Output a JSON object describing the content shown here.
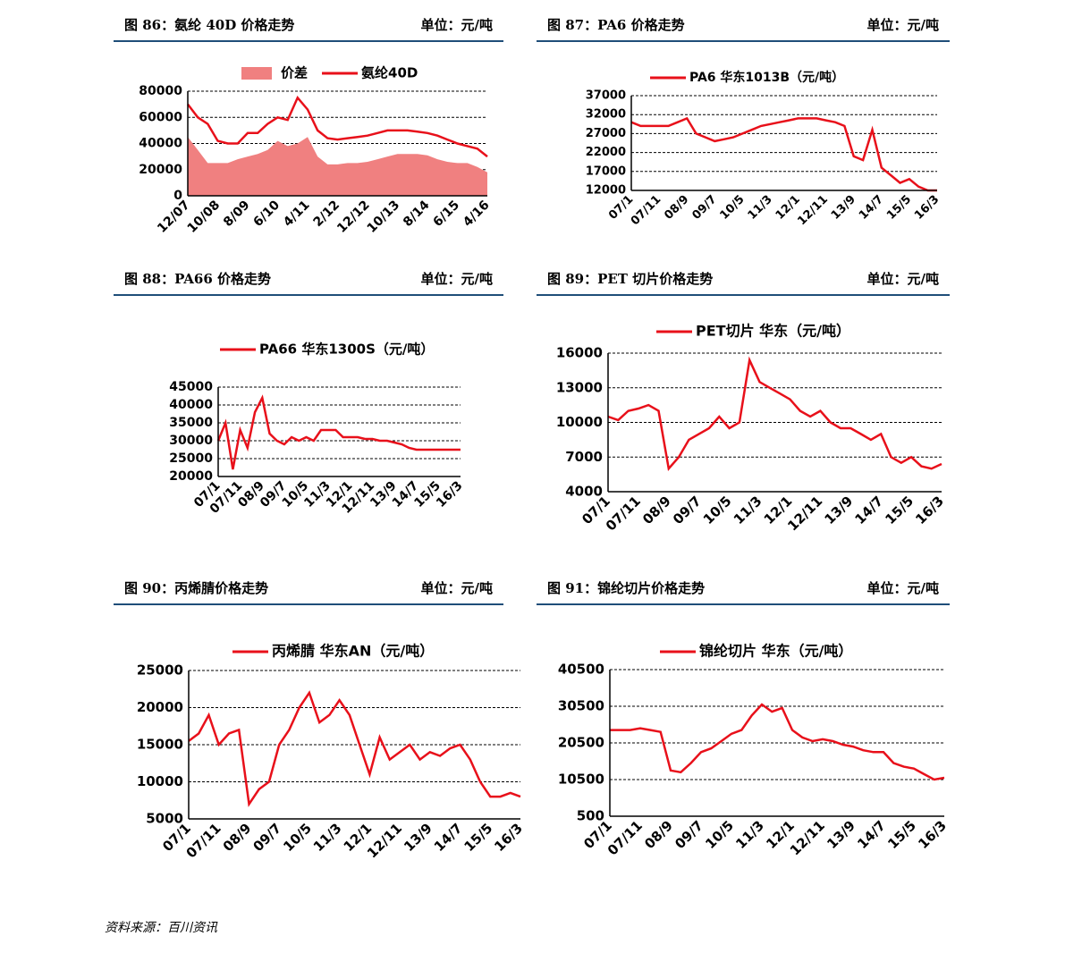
{
  "source": "资料来源：百川资讯",
  "chart_data": [
    {
      "type": "line",
      "title": "图 86：氨纶 40D 价格走势",
      "unit": "单位：元/吨",
      "categories": [
        "12/07",
        null,
        null,
        "10/08",
        null,
        null,
        "8/09",
        null,
        null,
        "6/10",
        null,
        null,
        "4/11",
        null,
        null,
        "2/12",
        null,
        null,
        "12/12",
        null,
        null,
        "10/13",
        null,
        null,
        "8/14",
        null,
        null,
        "6/15",
        null,
        null,
        "4/16"
      ],
      "series": [
        {
          "name": "价差",
          "style": "area",
          "color": "#f08080",
          "values": [
            45000,
            35000,
            25000,
            25000,
            25000,
            28000,
            30000,
            32000,
            35000,
            42000,
            38000,
            40000,
            45000,
            30000,
            24000,
            24000,
            25000,
            25000,
            26000,
            28000,
            30000,
            32000,
            32000,
            32000,
            31000,
            28000,
            26000,
            25000,
            25000,
            22000,
            18000
          ]
        },
        {
          "name": "氨纶40D",
          "style": "line",
          "color": "#e8101a",
          "values": [
            70000,
            60000,
            55000,
            42000,
            40000,
            40000,
            48000,
            48000,
            55000,
            60000,
            58000,
            75000,
            66000,
            50000,
            44000,
            43000,
            44000,
            45000,
            46000,
            48000,
            50000,
            50000,
            50000,
            49000,
            48000,
            46000,
            43000,
            40000,
            38000,
            36000,
            30000
          ]
        }
      ],
      "ylim": [
        0,
        80000
      ],
      "yticks": [
        0,
        20000,
        40000,
        60000,
        80000
      ],
      "grid": true
    },
    {
      "type": "line",
      "title": "图 87：PA6 价格走势",
      "unit": "单位：元/吨",
      "categories": [
        "07/1",
        null,
        null,
        "07/11",
        null,
        null,
        "08/9",
        null,
        null,
        "09/7",
        null,
        null,
        "10/5",
        null,
        null,
        "11/3",
        null,
        null,
        "12/1",
        null,
        null,
        "12/11",
        null,
        null,
        "13/9",
        null,
        null,
        "14/7",
        null,
        null,
        "15/5",
        null,
        null,
        "16/3"
      ],
      "series": [
        {
          "name": "PA6 华东1013B（元/吨）",
          "style": "line",
          "color": "#e8101a",
          "values": [
            30000,
            29000,
            29000,
            29000,
            29000,
            30000,
            31000,
            27000,
            26000,
            25000,
            25500,
            26000,
            27000,
            28000,
            29000,
            29500,
            30000,
            30500,
            31000,
            31000,
            31000,
            30500,
            30000,
            29000,
            21000,
            20000,
            28000,
            18000,
            16000,
            14000,
            15000,
            13000,
            12000,
            12000
          ]
        }
      ],
      "ylim": [
        12000,
        37000
      ],
      "yticks": [
        12000,
        17000,
        22000,
        27000,
        32000,
        37000
      ],
      "grid": true
    },
    {
      "type": "line",
      "title": "图 88：PA66 价格走势",
      "unit": "单位：元/吨",
      "categories": [
        "07/1",
        null,
        null,
        "07/11",
        null,
        null,
        "08/9",
        null,
        null,
        "09/7",
        null,
        null,
        "10/5",
        null,
        null,
        "11/3",
        null,
        null,
        "12/1",
        null,
        null,
        "12/11",
        null,
        null,
        "13/9",
        null,
        null,
        "14/7",
        null,
        null,
        "15/5",
        null,
        null,
        "16/3"
      ],
      "series": [
        {
          "name": "PA66 华东1300S（元/吨）",
          "style": "line",
          "color": "#e8101a",
          "values": [
            30000,
            35000,
            22000,
            33000,
            28000,
            38000,
            42000,
            32000,
            30000,
            29000,
            31000,
            30000,
            31000,
            30000,
            33000,
            33000,
            33000,
            31000,
            31000,
            31000,
            30500,
            30500,
            30000,
            30000,
            29500,
            29000,
            28000,
            27500,
            27500,
            27500,
            27500,
            27500,
            27500,
            27500
          ]
        }
      ],
      "ylim": [
        20000,
        45000
      ],
      "yticks": [
        20000,
        25000,
        30000,
        35000,
        40000,
        45000
      ],
      "grid": true
    },
    {
      "type": "line",
      "title": "图 89：PET 切片价格走势",
      "unit": "单位：元/吨",
      "categories": [
        "07/1",
        null,
        null,
        "07/11",
        null,
        null,
        "08/9",
        null,
        null,
        "09/7",
        null,
        null,
        "10/5",
        null,
        null,
        "11/3",
        null,
        null,
        "12/1",
        null,
        null,
        "12/11",
        null,
        null,
        "13/9",
        null,
        null,
        "14/7",
        null,
        null,
        "15/5",
        null,
        null,
        "16/3"
      ],
      "series": [
        {
          "name": "PET切片 华东（元/吨）",
          "style": "line",
          "color": "#e8101a",
          "values": [
            10500,
            10200,
            11000,
            11200,
            11500,
            11000,
            6000,
            7000,
            8500,
            9000,
            9500,
            10500,
            9500,
            10000,
            15400,
            13500,
            13000,
            12500,
            12000,
            11000,
            10500,
            11000,
            10000,
            9500,
            9500,
            9000,
            8500,
            9000,
            7000,
            6500,
            7000,
            6200,
            6000,
            6400
          ]
        }
      ],
      "ylim": [
        4000,
        16000
      ],
      "yticks": [
        4000,
        7000,
        10000,
        13000,
        16000
      ],
      "grid": true
    },
    {
      "type": "line",
      "title": "图 90：丙烯腈价格走势",
      "unit": "单位：元/吨",
      "categories": [
        "07/1",
        null,
        null,
        "07/11",
        null,
        null,
        "08/9",
        null,
        null,
        "09/7",
        null,
        null,
        "10/5",
        null,
        null,
        "11/3",
        null,
        null,
        "12/1",
        null,
        null,
        "12/11",
        null,
        null,
        "13/9",
        null,
        null,
        "14/7",
        null,
        null,
        "15/5",
        null,
        null,
        "16/3"
      ],
      "series": [
        {
          "name": "丙烯腈 华东AN（元/吨）",
          "style": "line",
          "color": "#e8101a",
          "values": [
            15500,
            16500,
            19000,
            15000,
            16500,
            17000,
            7000,
            9000,
            10000,
            15000,
            17000,
            20000,
            22000,
            18000,
            19000,
            21000,
            19000,
            15000,
            11000,
            16000,
            13000,
            14000,
            15000,
            13000,
            14000,
            13500,
            14500,
            15000,
            13000,
            10000,
            8000,
            8000,
            8500,
            8000
          ]
        }
      ],
      "ylim": [
        5000,
        25000
      ],
      "yticks": [
        5000,
        10000,
        15000,
        20000,
        25000
      ],
      "grid": true
    },
    {
      "type": "line",
      "title": "图 91：锦纶切片价格走势",
      "unit": "单位：元/吨",
      "categories": [
        "07/1",
        null,
        null,
        "07/11",
        null,
        null,
        "08/9",
        null,
        null,
        "09/7",
        null,
        null,
        "10/5",
        null,
        null,
        "11/3",
        null,
        null,
        "12/1",
        null,
        null,
        "12/11",
        null,
        null,
        "13/9",
        null,
        null,
        "14/7",
        null,
        null,
        "15/5",
        null,
        null,
        "16/3"
      ],
      "series": [
        {
          "name": "锦纶切片 华东（元/吨）",
          "style": "line",
          "color": "#e8101a",
          "values": [
            24000,
            24000,
            24000,
            24500,
            24000,
            23500,
            13000,
            12500,
            15000,
            18000,
            19000,
            21000,
            23000,
            24000,
            28000,
            31000,
            29000,
            30000,
            24000,
            22000,
            21000,
            21500,
            21000,
            20000,
            19500,
            18500,
            18000,
            18000,
            15000,
            14000,
            13500,
            12000,
            10500,
            11000
          ]
        }
      ],
      "ylim": [
        500,
        40500
      ],
      "yticks": [
        500,
        10500,
        20500,
        30500,
        40500
      ],
      "grid": true
    }
  ]
}
